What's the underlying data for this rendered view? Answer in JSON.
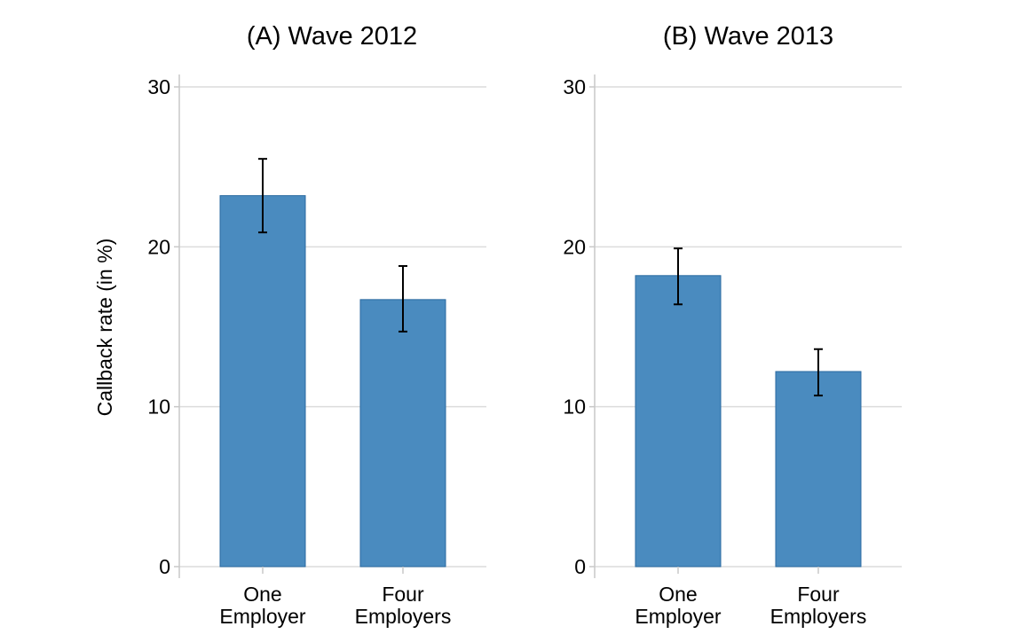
{
  "chart_data": [
    {
      "type": "bar",
      "title": "(A) Wave 2012",
      "ylabel": "Callback rate (in %)",
      "xlabel": "",
      "ylim": [
        0,
        30
      ],
      "yticks": [
        "0",
        "10",
        "20",
        "30"
      ],
      "categories": [
        [
          "One",
          "Employer"
        ],
        [
          "Four",
          "Employers"
        ]
      ],
      "values": [
        23.2,
        16.7
      ],
      "error_low": [
        20.9,
        14.7
      ],
      "error_high": [
        25.5,
        18.8
      ],
      "grid": true,
      "bar_color": "#4a8bbf"
    },
    {
      "type": "bar",
      "title": "(B) Wave 2013",
      "ylabel": "",
      "xlabel": "",
      "ylim": [
        0,
        30
      ],
      "yticks": [
        "0",
        "10",
        "20",
        "30"
      ],
      "categories": [
        [
          "One",
          "Employer"
        ],
        [
          "Four",
          "Employers"
        ]
      ],
      "values": [
        18.2,
        12.2
      ],
      "error_low": [
        16.4,
        10.7
      ],
      "error_high": [
        19.9,
        13.6
      ],
      "grid": true,
      "bar_color": "#4a8bbf"
    }
  ]
}
